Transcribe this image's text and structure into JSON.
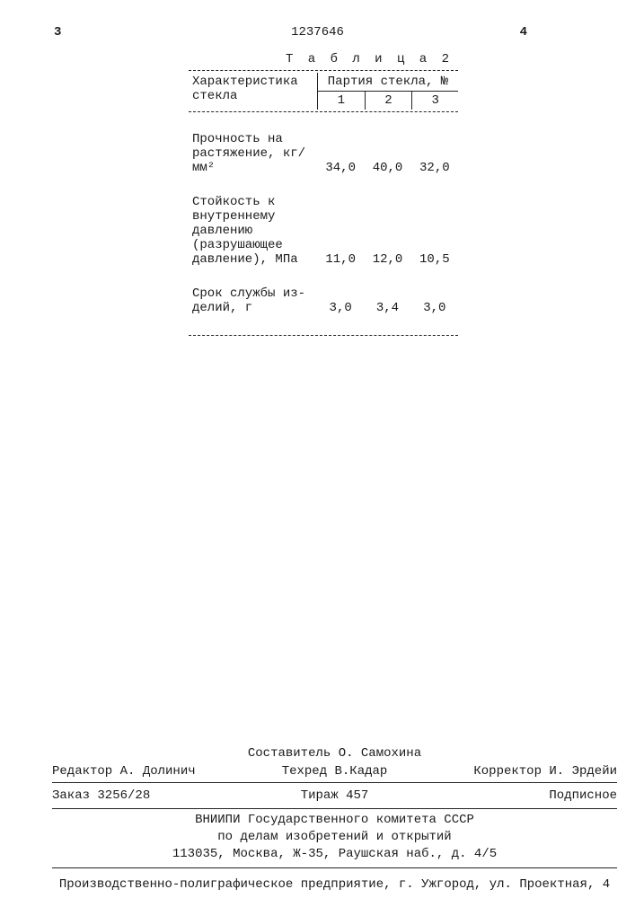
{
  "header": {
    "left_page": "3",
    "doc_number": "1237646",
    "right_page": "4"
  },
  "table": {
    "caption": "Т а б л и ц а  2",
    "col_label": "Характеристика стекла",
    "group_label": "Партия стекла, №",
    "subcols": [
      "1",
      "2",
      "3"
    ],
    "rows": [
      {
        "label": "Прочность на растяжение, кг/мм²",
        "v1": "34,0",
        "v2": "40,0",
        "v3": "32,0"
      },
      {
        "label": "Стойкость к внутреннему давлению (разрушающее давление), МПа",
        "v1": "11,0",
        "v2": "12,0",
        "v3": "10,5"
      },
      {
        "label": "Срок службы из-делий, г",
        "v1": "3,0",
        "v2": "3,4",
        "v3": "3,0"
      }
    ]
  },
  "footer": {
    "compiler": "Составитель О. Самохина",
    "editor": "Редактор А. Долинич",
    "techred": "Техред В.Кадар",
    "corrector": "Корректор И. Эрдейи",
    "order": "Заказ 3256/28",
    "tirazh": "Тираж 457",
    "podpisnoe": "Подписное",
    "org": "ВНИИПИ Государственного комитета СССР\nпо делам изобретений и открытий\n113035, Москва, Ж-35, Раушская наб., д. 4/5",
    "press": "Производственно-полиграфическое предприятие, г. Ужгород, ул. Проектная, 4"
  }
}
